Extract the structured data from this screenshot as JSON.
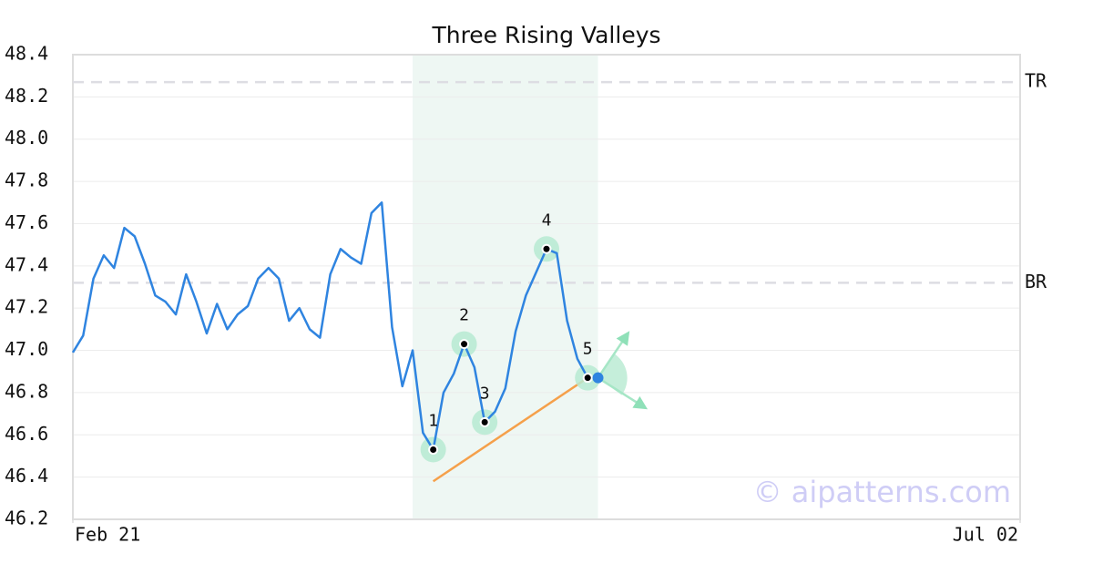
{
  "chart_data": {
    "type": "line",
    "title": "Three Rising Valleys",
    "x": [
      0,
      1,
      2,
      3,
      4,
      5,
      6,
      7,
      8,
      9,
      10,
      11,
      12,
      13,
      14,
      15,
      16,
      17,
      18,
      19,
      20,
      21,
      22,
      23,
      24,
      25,
      26,
      27,
      28,
      29,
      30,
      31,
      32,
      33,
      34,
      35,
      36,
      37,
      38,
      39,
      40,
      41,
      42,
      43,
      44,
      45,
      46,
      47,
      48,
      49,
      50
    ],
    "values": [
      46.99,
      47.07,
      47.34,
      47.45,
      47.39,
      47.58,
      47.54,
      47.41,
      47.26,
      47.23,
      47.17,
      47.36,
      47.23,
      47.08,
      47.22,
      47.1,
      47.17,
      47.21,
      47.34,
      47.39,
      47.34,
      47.14,
      47.2,
      47.1,
      47.06,
      47.36,
      47.48,
      47.44,
      47.41,
      47.65,
      47.7,
      47.11,
      46.83,
      47.0,
      46.61,
      46.53,
      46.8,
      46.89,
      47.03,
      46.92,
      46.66,
      46.71,
      46.82,
      47.09,
      47.26,
      47.37,
      47.48,
      47.46,
      47.14,
      46.96,
      46.87
    ],
    "color": "#2f84e0",
    "xlim": [
      0,
      92
    ],
    "xticks": [
      {
        "value": 0,
        "label": "Feb 21"
      },
      {
        "value": 92,
        "label": "Jul 02"
      }
    ],
    "ylim": [
      46.2,
      48.4
    ],
    "yticks": [
      46.2,
      46.4,
      46.6,
      46.8,
      {
        "value": 47.0,
        "label": "47.0"
      },
      47.2,
      47.4,
      47.6,
      47.8,
      {
        "value": 48.0,
        "label": "48.0"
      },
      48.2,
      48.4
    ],
    "grid": true,
    "highlight_range": [
      33,
      51
    ],
    "levels": [
      {
        "label": "TR",
        "value": 48.27
      },
      {
        "label": "BR",
        "value": 47.32
      }
    ],
    "pivots": [
      {
        "label": "1",
        "x": 35,
        "y": 46.53
      },
      {
        "label": "2",
        "x": 38,
        "y": 47.03
      },
      {
        "label": "3",
        "x": 40,
        "y": 46.66
      },
      {
        "label": "4",
        "x": 46,
        "y": 47.48
      },
      {
        "label": "5",
        "x": 50,
        "y": 46.87
      }
    ],
    "trendline": {
      "x": [
        35,
        50
      ],
      "y": [
        46.38,
        46.87
      ],
      "color": "#f5a04a"
    },
    "breakout": {
      "x": 51,
      "y": 46.87,
      "color": "#2f84e0"
    },
    "watermark": "© aipatterns.com"
  }
}
